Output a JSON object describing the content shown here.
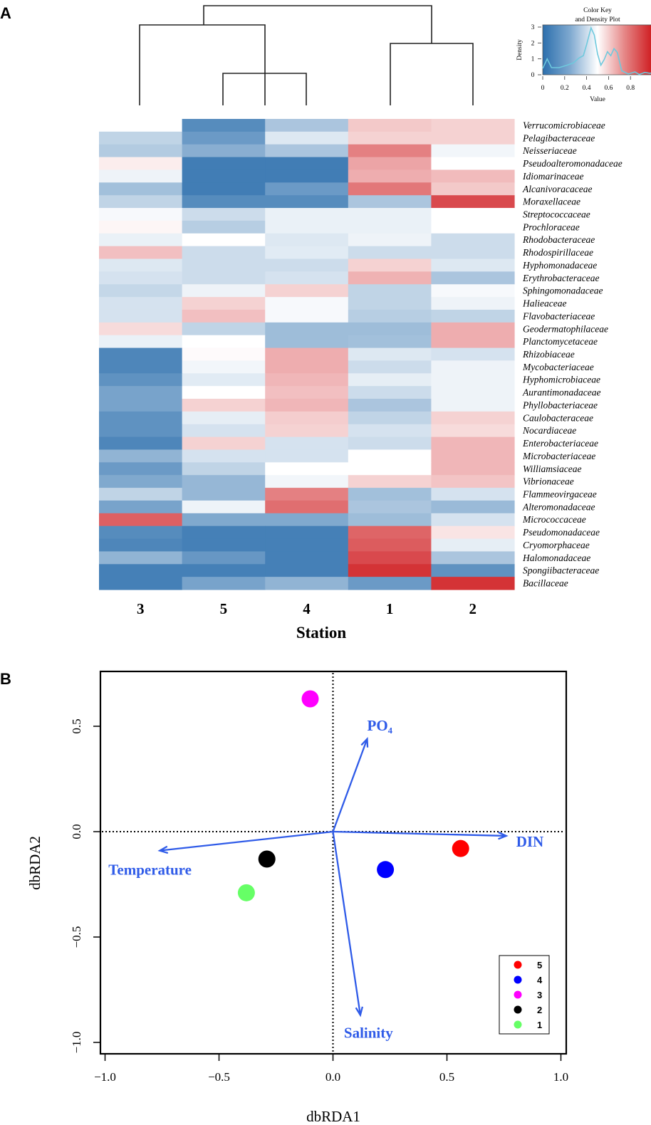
{
  "panel_a_label": "A",
  "panel_b_label": "B",
  "chart_data": [
    {
      "type": "heatmap",
      "panel": "A",
      "xlabel": "Station",
      "columns": [
        "3",
        "5",
        "4",
        "1",
        "2"
      ],
      "rows": [
        "Verrucomicrobiaceae",
        "Pelagibacteraceae",
        "Neisseriaceae",
        "Pseudoalteromonadaceae",
        "Idiomarinaceae",
        "Alcanivoracaceae",
        "Moraxellaceae",
        "Streptococcaceae",
        "Prochloraceae",
        "Rhodobacteraceae",
        "Rhodospirillaceae",
        "Hyphomonadaceae",
        "Erythrobacteraceae",
        "Sphingomonadaceae",
        "Halieaceae",
        "Flavobacteriaceae",
        "Geodermatophilaceae",
        "Planctomycetaceae",
        "Rhizobiaceae",
        "Mycobacteriaceae",
        "Hyphomicrobiaceae",
        "Aurantimonadaceae",
        "Phyllobacteriaceae",
        "Caulobacteraceae",
        "Nocardiaceae",
        "Enterobacteriaceae",
        "Microbacteriaceae",
        "Williamsiaceae",
        "Vibrionaceae",
        "Flammeovirgaceae",
        "Alteromonadaceae",
        "Micrococcaceae",
        "Pseudomonadaceae",
        "Cryomorphaceae",
        "Halomonadaceae",
        "Spongiibacteraceae",
        "Bacillaceae"
      ],
      "values": [
        [
          0.5,
          0.1,
          0.3,
          0.62,
          0.6
        ],
        [
          0.35,
          0.15,
          0.42,
          0.6,
          0.6
        ],
        [
          0.32,
          0.22,
          0.3,
          0.78,
          0.47
        ],
        [
          0.54,
          0.05,
          0.05,
          0.7,
          0.5
        ],
        [
          0.46,
          0.05,
          0.05,
          0.68,
          0.65
        ],
        [
          0.28,
          0.05,
          0.15,
          0.8,
          0.62
        ],
        [
          0.35,
          0.1,
          0.1,
          0.3,
          0.9
        ],
        [
          0.48,
          0.38,
          0.45,
          0.45,
          0.5
        ],
        [
          0.52,
          0.33,
          0.45,
          0.45,
          0.5
        ],
        [
          0.45,
          0.5,
          0.42,
          0.46,
          0.38
        ],
        [
          0.64,
          0.38,
          0.43,
          0.38,
          0.38
        ],
        [
          0.42,
          0.38,
          0.38,
          0.6,
          0.42
        ],
        [
          0.4,
          0.38,
          0.4,
          0.67,
          0.3
        ],
        [
          0.36,
          0.46,
          0.6,
          0.35,
          0.48
        ],
        [
          0.4,
          0.6,
          0.48,
          0.35,
          0.46
        ],
        [
          0.4,
          0.64,
          0.48,
          0.33,
          0.35
        ],
        [
          0.58,
          0.35,
          0.27,
          0.27,
          0.68
        ],
        [
          0.45,
          0.5,
          0.27,
          0.28,
          0.68
        ],
        [
          0.08,
          0.51,
          0.68,
          0.42,
          0.4
        ],
        [
          0.08,
          0.47,
          0.68,
          0.38,
          0.46
        ],
        [
          0.12,
          0.43,
          0.66,
          0.44,
          0.46
        ],
        [
          0.18,
          0.5,
          0.64,
          0.38,
          0.46
        ],
        [
          0.18,
          0.6,
          0.66,
          0.3,
          0.46
        ],
        [
          0.12,
          0.44,
          0.61,
          0.35,
          0.6
        ],
        [
          0.12,
          0.4,
          0.6,
          0.4,
          0.58
        ],
        [
          0.08,
          0.6,
          0.4,
          0.38,
          0.66
        ],
        [
          0.24,
          0.4,
          0.4,
          0.5,
          0.66
        ],
        [
          0.15,
          0.35,
          0.5,
          0.5,
          0.66
        ],
        [
          0.2,
          0.25,
          0.47,
          0.6,
          0.63
        ],
        [
          0.35,
          0.25,
          0.78,
          0.28,
          0.4
        ],
        [
          0.18,
          0.46,
          0.82,
          0.3,
          0.26
        ],
        [
          0.85,
          0.2,
          0.2,
          0.27,
          0.4
        ],
        [
          0.1,
          0.06,
          0.06,
          0.84,
          0.56
        ],
        [
          0.08,
          0.06,
          0.06,
          0.86,
          0.44
        ],
        [
          0.24,
          0.14,
          0.06,
          0.9,
          0.3
        ],
        [
          0.06,
          0.06,
          0.06,
          0.95,
          0.12
        ],
        [
          0.06,
          0.18,
          0.24,
          0.15,
          0.95
        ]
      ],
      "color_scale": {
        "low": "#2c6fad",
        "mid": "#ffffff",
        "high": "#cf1c20"
      },
      "color_key": {
        "title_line1": "Color Key",
        "title_line2": "and Density Plot",
        "xlabel": "Value",
        "ylabel": "Density",
        "x_ticks": [
          "0",
          "0.2",
          "0.4",
          "0.6",
          "0.8"
        ],
        "y_ticks": [
          "0",
          "1",
          "2",
          "3"
        ],
        "density_curve": [
          [
            0.0,
            0.4
          ],
          [
            0.04,
            1.0
          ],
          [
            0.08,
            0.45
          ],
          [
            0.15,
            0.45
          ],
          [
            0.22,
            0.6
          ],
          [
            0.28,
            0.75
          ],
          [
            0.33,
            1.05
          ],
          [
            0.37,
            1.2
          ],
          [
            0.4,
            1.9
          ],
          [
            0.44,
            2.95
          ],
          [
            0.47,
            2.5
          ],
          [
            0.5,
            1.3
          ],
          [
            0.53,
            0.6
          ],
          [
            0.56,
            0.95
          ],
          [
            0.59,
            1.45
          ],
          [
            0.62,
            1.2
          ],
          [
            0.65,
            1.65
          ],
          [
            0.68,
            1.4
          ],
          [
            0.72,
            0.25
          ],
          [
            0.78,
            0.05
          ],
          [
            0.84,
            0.18
          ],
          [
            0.88,
            0.02
          ],
          [
            0.93,
            0.15
          ],
          [
            0.97,
            0.1
          ],
          [
            1.0,
            0.1
          ]
        ],
        "curve_color": "#6ec9dd"
      }
    },
    {
      "type": "scatter",
      "panel": "B",
      "xlabel": "dbRDA1",
      "ylabel": "dbRDA2",
      "xlim": [
        -1.05,
        1.03
      ],
      "ylim": [
        -1.05,
        0.77
      ],
      "x_ticks": [
        -1.0,
        -0.5,
        0.0,
        0.5,
        1.0
      ],
      "y_ticks": [
        -1.0,
        -0.5,
        0.0,
        0.5
      ],
      "x_tick_labels": [
        "−1.0",
        "−0.5",
        "0.0",
        "0.5",
        "1.0"
      ],
      "y_tick_labels": [
        "−1.0",
        "−0.5",
        "0.0",
        "0.5"
      ],
      "points": [
        {
          "label": "5",
          "x": 0.56,
          "y": -0.08,
          "color": "#ff0000"
        },
        {
          "label": "4",
          "x": 0.23,
          "y": -0.18,
          "color": "#0000ff"
        },
        {
          "label": "3",
          "x": -0.1,
          "y": 0.63,
          "color": "#ff00ff"
        },
        {
          "label": "2",
          "x": -0.29,
          "y": -0.13,
          "color": "#000000"
        },
        {
          "label": "1",
          "x": -0.38,
          "y": -0.29,
          "color": "#66ff66"
        }
      ],
      "vectors": [
        {
          "label": "PO₄",
          "x": 0.15,
          "y": 0.44
        },
        {
          "label": "DIN",
          "x": 0.76,
          "y": -0.02
        },
        {
          "label": "Temperature",
          "x": -0.76,
          "y": -0.09
        },
        {
          "label": "Salinity",
          "x": 0.12,
          "y": -0.87
        }
      ],
      "vector_color": "#2f5be8",
      "legend_position": "bottom-right"
    }
  ]
}
